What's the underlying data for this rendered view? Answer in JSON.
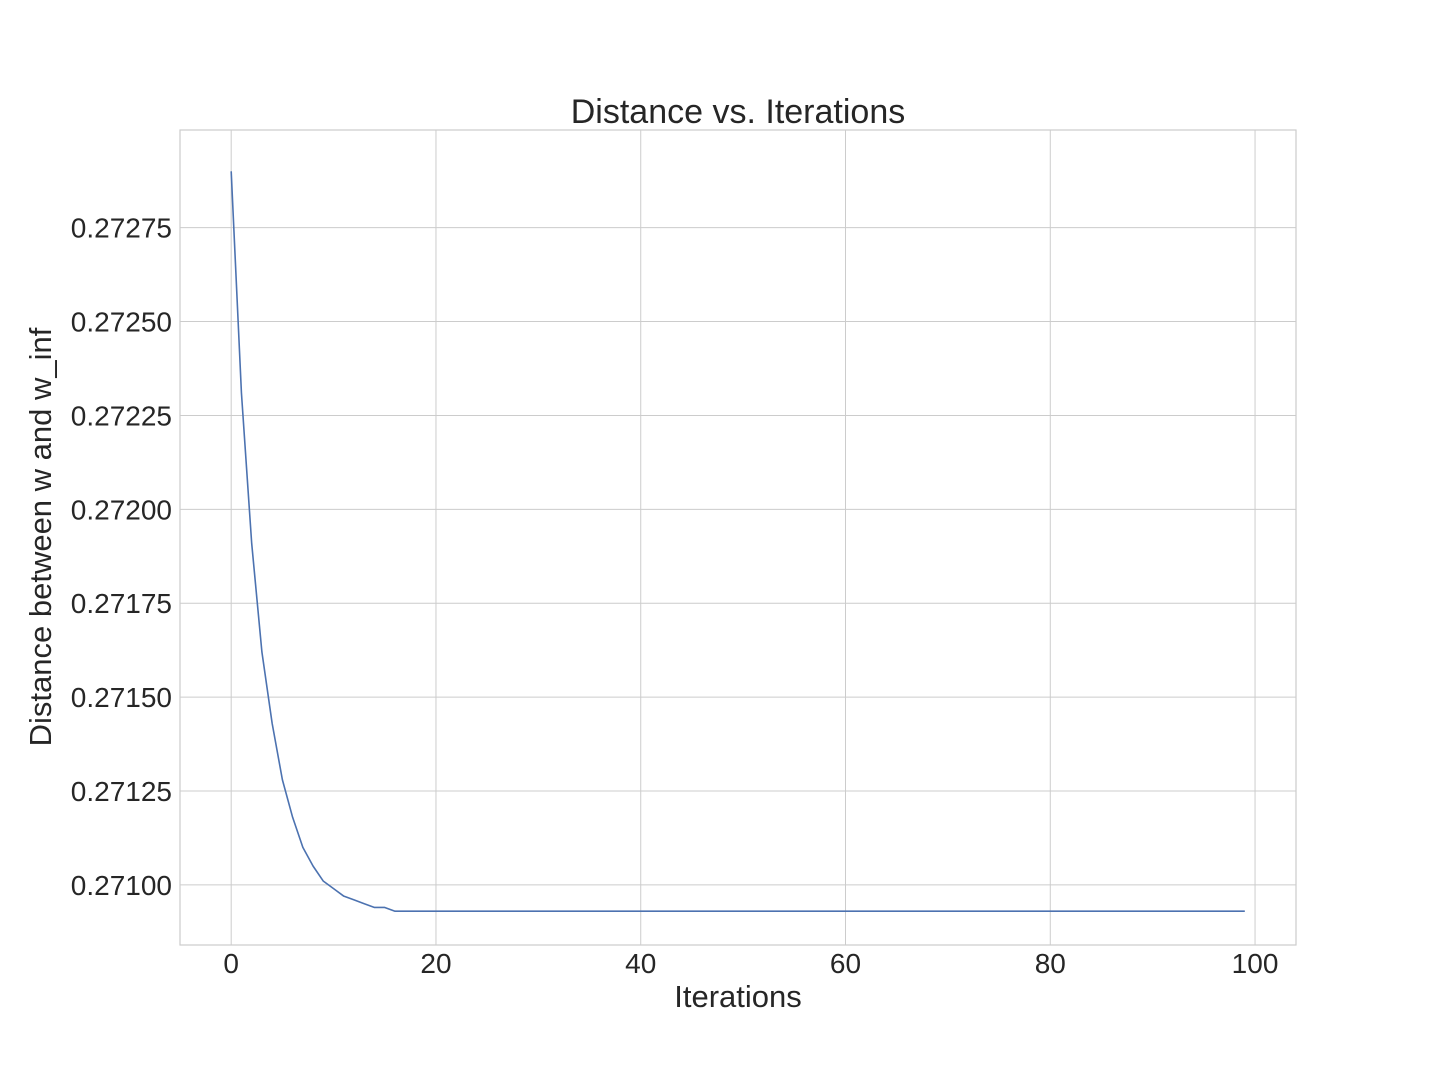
{
  "chart_data": {
    "type": "line",
    "title": "Distance vs. Iterations",
    "xlabel": "Iterations",
    "ylabel": "Distance between w and w_inf",
    "xlim": [
      -5,
      104
    ],
    "ylim": [
      0.27084,
      0.27301
    ],
    "xticks": [
      0,
      20,
      40,
      60,
      80,
      100
    ],
    "yticks": [
      0.271,
      0.27125,
      0.2715,
      0.27175,
      0.272,
      0.27225,
      0.2725,
      0.27275
    ],
    "ytick_labels": [
      "0.27100",
      "0.27125",
      "0.27150",
      "0.27175",
      "0.27200",
      "0.27225",
      "0.27250",
      "0.27275"
    ],
    "xtick_labels": [
      "0",
      "20",
      "40",
      "60",
      "80",
      "100"
    ],
    "grid": true,
    "legend": "none",
    "series": [
      {
        "color": "#4c72b0",
        "x": [
          0,
          1,
          2,
          3,
          4,
          5,
          6,
          7,
          8,
          9,
          10,
          11,
          12,
          13,
          14,
          15,
          16,
          17,
          18,
          19,
          20,
          21,
          22,
          23,
          24,
          25,
          26,
          27,
          28,
          29,
          30,
          31,
          32,
          33,
          34,
          35,
          36,
          37,
          38,
          39,
          40,
          41,
          42,
          43,
          44,
          45,
          46,
          47,
          48,
          49,
          50,
          51,
          52,
          53,
          54,
          55,
          56,
          57,
          58,
          59,
          60,
          61,
          62,
          63,
          64,
          65,
          66,
          67,
          68,
          69,
          70,
          71,
          72,
          73,
          74,
          75,
          76,
          77,
          78,
          79,
          80,
          81,
          82,
          83,
          84,
          85,
          86,
          87,
          88,
          89,
          90,
          91,
          92,
          93,
          94,
          95,
          96,
          97,
          98,
          99
        ],
        "y": [
          0.2729,
          0.27231,
          0.27191,
          0.27162,
          0.27143,
          0.27128,
          0.27118,
          0.2711,
          0.27105,
          0.27101,
          0.27099,
          0.27097,
          0.27096,
          0.27095,
          0.27094,
          0.27094,
          0.27093,
          0.27093,
          0.27093,
          0.27093,
          0.27093,
          0.27093,
          0.27093,
          0.27093,
          0.27093,
          0.27093,
          0.27093,
          0.27093,
          0.27093,
          0.27093,
          0.27093,
          0.27093,
          0.27093,
          0.27093,
          0.27093,
          0.27093,
          0.27093,
          0.27093,
          0.27093,
          0.27093,
          0.27093,
          0.27093,
          0.27093,
          0.27093,
          0.27093,
          0.27093,
          0.27093,
          0.27093,
          0.27093,
          0.27093,
          0.27093,
          0.27093,
          0.27093,
          0.27093,
          0.27093,
          0.27093,
          0.27093,
          0.27093,
          0.27093,
          0.27093,
          0.27093,
          0.27093,
          0.27093,
          0.27093,
          0.27093,
          0.27093,
          0.27093,
          0.27093,
          0.27093,
          0.27093,
          0.27093,
          0.27093,
          0.27093,
          0.27093,
          0.27093,
          0.27093,
          0.27093,
          0.27093,
          0.27093,
          0.27093,
          0.27093,
          0.27093,
          0.27093,
          0.27093,
          0.27093,
          0.27093,
          0.27093,
          0.27093,
          0.27093,
          0.27093,
          0.27093,
          0.27093,
          0.27093,
          0.27093,
          0.27093,
          0.27093,
          0.27093,
          0.27093,
          0.27093,
          0.27093
        ]
      }
    ]
  }
}
